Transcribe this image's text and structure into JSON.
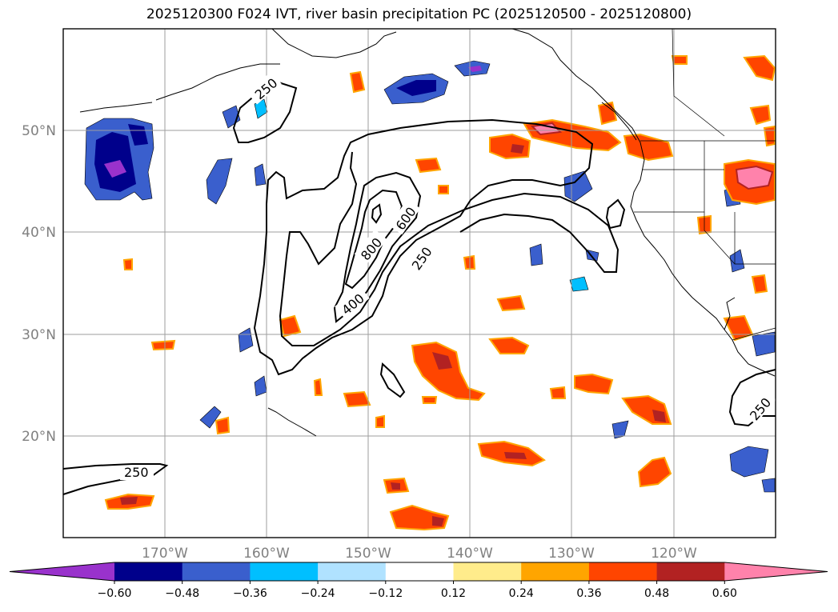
{
  "title": "2025120300 F024 IVT, river basin precipitation PC (2025120500 - 2025120800)",
  "map": {
    "lat_labels": [
      "50°N",
      "40°N",
      "30°N",
      "20°N"
    ],
    "lon_labels": [
      "170°W",
      "160°W",
      "150°W",
      "140°W",
      "130°W",
      "120°W"
    ],
    "extent": {
      "lon_min": -180,
      "lon_max": -110,
      "lat_min": 10,
      "lat_max": 60
    }
  },
  "contours": {
    "variable": "IVT",
    "levels": [
      "250",
      "400",
      "600",
      "800"
    ],
    "labels": [
      {
        "text": "250"
      },
      {
        "text": "250"
      },
      {
        "text": "250"
      },
      {
        "text": "250"
      },
      {
        "text": "400"
      },
      {
        "text": "600"
      },
      {
        "text": "800"
      }
    ]
  },
  "colorbar": {
    "ticks": [
      "−0.60",
      "−0.48",
      "−0.36",
      "−0.24",
      "−0.12",
      "0.12",
      "0.24",
      "0.36",
      "0.48",
      "0.60"
    ],
    "colors": [
      "#9932cc",
      "#00008b",
      "#3a5fcd",
      "#00bfff",
      "#b0e2ff",
      "#ffffff",
      "#ffec8b",
      "#ffa500",
      "#ff4500",
      "#b22222",
      "#ff82ab"
    ]
  }
}
